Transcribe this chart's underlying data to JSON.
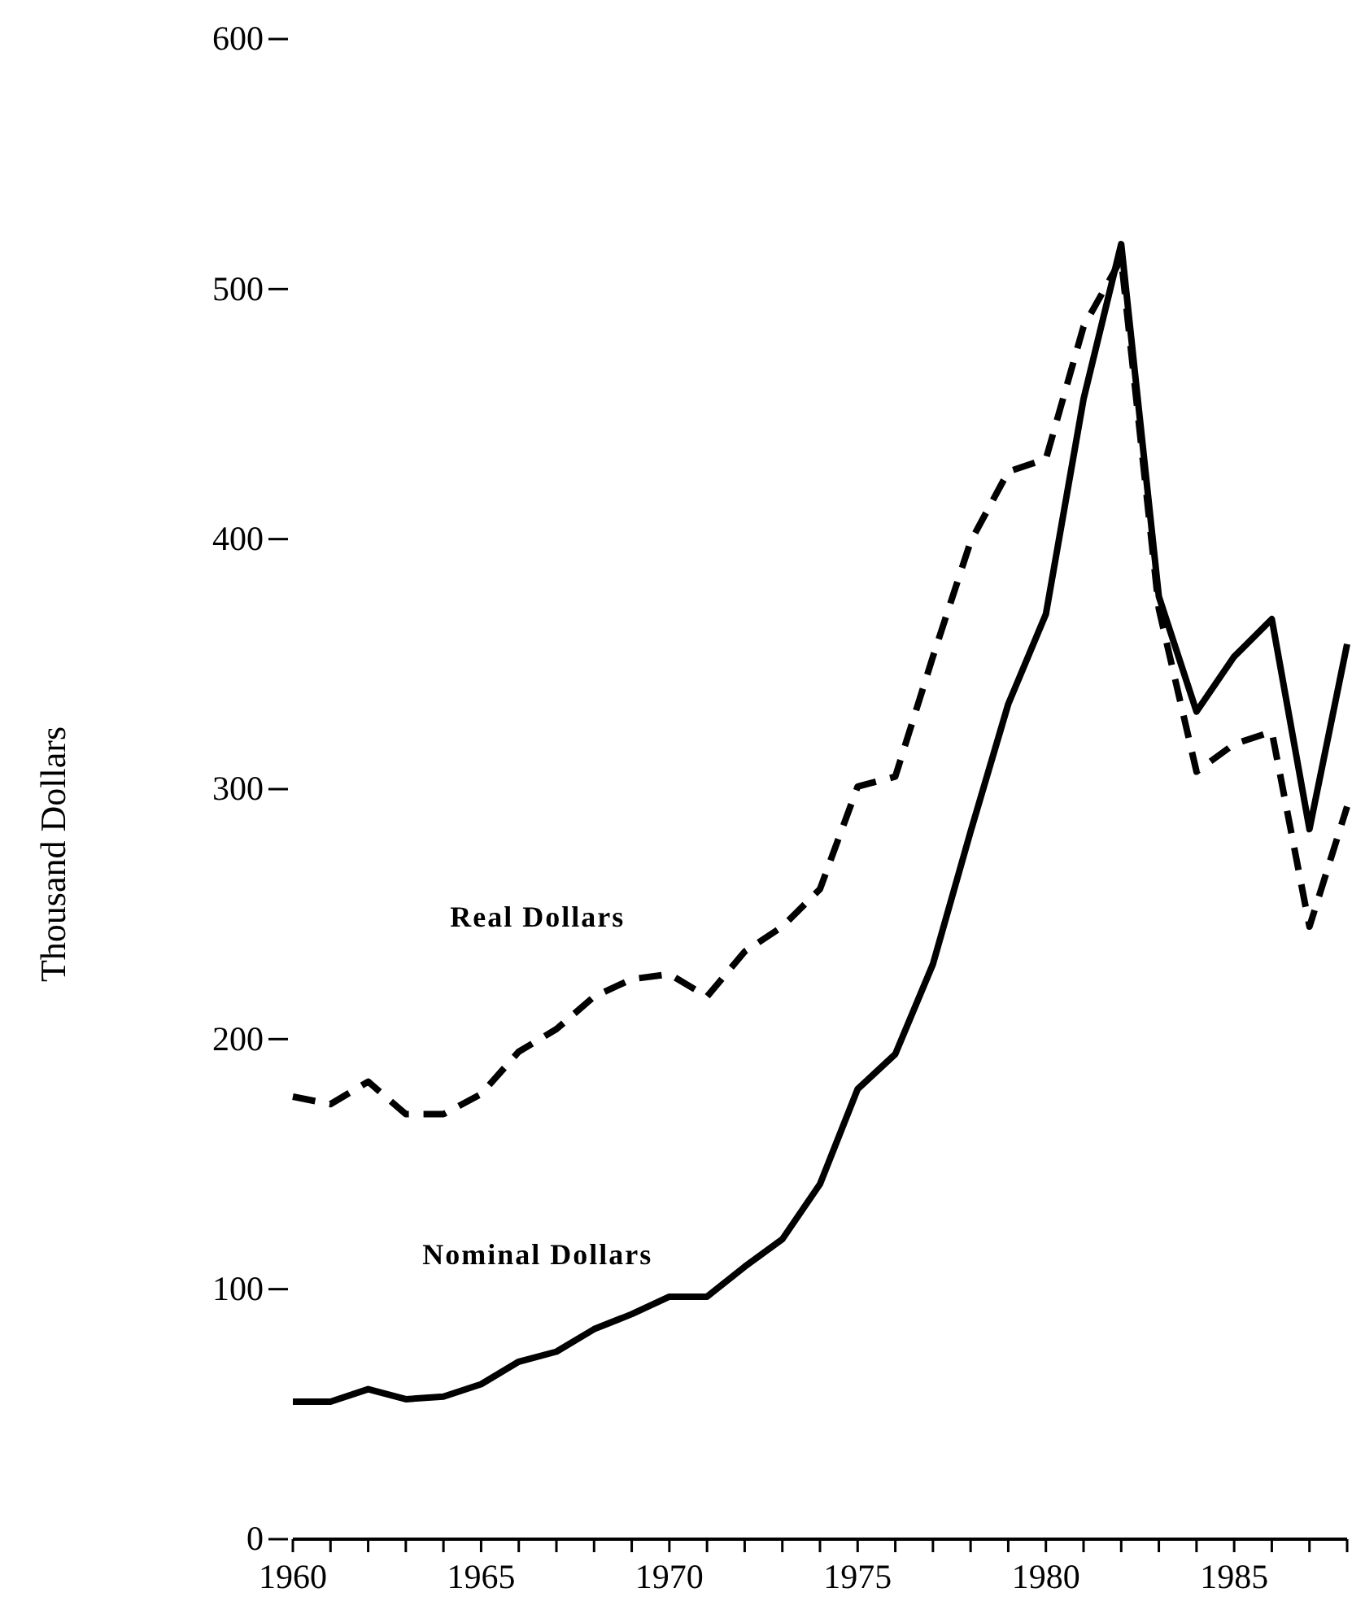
{
  "chart_data": {
    "type": "line",
    "ylabel": "Thousand Dollars",
    "x": [
      1960,
      1961,
      1962,
      1963,
      1964,
      1965,
      1966,
      1967,
      1968,
      1969,
      1970,
      1971,
      1972,
      1973,
      1974,
      1975,
      1976,
      1977,
      1978,
      1979,
      1980,
      1981,
      1982,
      1983,
      1984,
      1985,
      1986,
      1987,
      1988
    ],
    "series": [
      {
        "name": "Real Dollars",
        "color": "#000000",
        "line_style": "dashed",
        "values": [
          177,
          174,
          183,
          170,
          170,
          178,
          195,
          204,
          217,
          224,
          226,
          217,
          235,
          245,
          260,
          301,
          305,
          353,
          399,
          427,
          432,
          485,
          512,
          372,
          307,
          318,
          323,
          245,
          293
        ]
      },
      {
        "name": "Nominal Dollars",
        "color": "#000000",
        "line_style": "solid",
        "values": [
          55,
          55,
          60,
          56,
          57,
          62,
          71,
          75,
          84,
          90,
          97,
          97,
          109,
          120,
          142,
          180,
          194,
          230,
          283,
          334,
          370,
          456,
          518,
          377,
          331,
          353,
          368,
          284,
          358
        ]
      }
    ],
    "xlim": [
      1960,
      1988
    ],
    "xticks": [
      1960,
      {
        "value": 1961,
        "label": null
      },
      {
        "value": 1962,
        "label": null
      },
      {
        "value": 1963,
        "label": null
      },
      {
        "value": 1964,
        "label": null
      },
      1965,
      {
        "value": 1966,
        "label": null
      },
      {
        "value": 1967,
        "label": null
      },
      {
        "value": 1968,
        "label": null
      },
      {
        "value": 1969,
        "label": null
      },
      1970,
      {
        "value": 1971,
        "label": null
      },
      {
        "value": 1972,
        "label": null
      },
      {
        "value": 1973,
        "label": null
      },
      {
        "value": 1974,
        "label": null
      },
      1975,
      {
        "value": 1976,
        "label": null
      },
      {
        "value": 1977,
        "label": null
      },
      {
        "value": 1978,
        "label": null
      },
      {
        "value": 1979,
        "label": null
      },
      1980,
      {
        "value": 1981,
        "label": null
      },
      {
        "value": 1982,
        "label": null
      },
      {
        "value": 1983,
        "label": null
      },
      {
        "value": 1984,
        "label": null
      },
      1985,
      {
        "value": 1986,
        "label": null
      },
      {
        "value": 1987,
        "label": null
      },
      {
        "value": 1988,
        "label": null
      }
    ],
    "ylim": [
      0,
      600
    ],
    "yticks": [
      0,
      100,
      200,
      300,
      400,
      500,
      600
    ],
    "grid": false,
    "marker": "none"
  }
}
